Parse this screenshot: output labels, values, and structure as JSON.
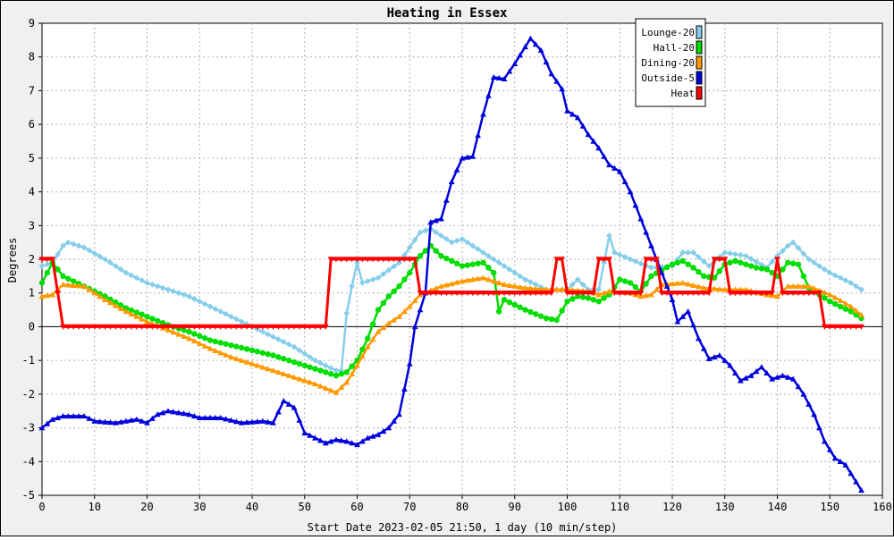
{
  "chart_data": {
    "type": "line",
    "title": "Heating in Essex",
    "xlabel": "Start Date 2023-02-05 21:50, 1 day (10 min/step)",
    "ylabel": "Degrees",
    "xlim": [
      0,
      160
    ],
    "ylim": [
      -5,
      9
    ],
    "x_ticks": [
      0,
      10,
      20,
      30,
      40,
      50,
      60,
      70,
      80,
      90,
      100,
      110,
      120,
      130,
      140,
      150,
      160
    ],
    "y_ticks": [
      -5,
      -4,
      -3,
      -2,
      -1,
      0,
      1,
      2,
      3,
      4,
      5,
      6,
      7,
      8,
      9
    ],
    "grid": true,
    "zero_line": true,
    "legend_position": "top-right",
    "series": [
      {
        "name": "Lounge-20",
        "color": "#87ceeb",
        "marker": "diamond",
        "points": [
          [
            0,
            1.8
          ],
          [
            2,
            1.9
          ],
          [
            4,
            2.4
          ],
          [
            5,
            2.5
          ],
          [
            8,
            2.35
          ],
          [
            12,
            2.0
          ],
          [
            16,
            1.6
          ],
          [
            20,
            1.3
          ],
          [
            24,
            1.1
          ],
          [
            28,
            0.9
          ],
          [
            32,
            0.6
          ],
          [
            36,
            0.3
          ],
          [
            40,
            0.0
          ],
          [
            44,
            -0.3
          ],
          [
            48,
            -0.6
          ],
          [
            52,
            -1.0
          ],
          [
            56,
            -1.3
          ],
          [
            57,
            -1.3
          ],
          [
            58,
            0.4
          ],
          [
            59,
            1.2
          ],
          [
            60,
            1.9
          ],
          [
            61,
            1.3
          ],
          [
            64,
            1.45
          ],
          [
            68,
            1.9
          ],
          [
            72,
            2.8
          ],
          [
            74,
            2.9
          ],
          [
            78,
            2.5
          ],
          [
            80,
            2.6
          ],
          [
            84,
            2.2
          ],
          [
            88,
            1.8
          ],
          [
            92,
            1.4
          ],
          [
            96,
            1.1
          ],
          [
            100,
            1.1
          ],
          [
            102,
            1.4
          ],
          [
            104,
            1.1
          ],
          [
            106,
            1.1
          ],
          [
            108,
            2.7
          ],
          [
            109,
            2.2
          ],
          [
            112,
            2.0
          ],
          [
            116,
            1.75
          ],
          [
            120,
            1.8
          ],
          [
            122,
            2.2
          ],
          [
            124,
            2.2
          ],
          [
            127,
            1.8
          ],
          [
            130,
            2.2
          ],
          [
            134,
            2.1
          ],
          [
            138,
            1.75
          ],
          [
            140,
            2.1
          ],
          [
            142,
            2.4
          ],
          [
            143,
            2.5
          ],
          [
            146,
            2.0
          ],
          [
            150,
            1.6
          ],
          [
            154,
            1.3
          ],
          [
            156,
            1.1
          ]
        ]
      },
      {
        "name": "Hall-20",
        "color": "#00dd00",
        "marker": "circle",
        "points": [
          [
            0,
            1.3
          ],
          [
            2,
            1.9
          ],
          [
            4,
            1.5
          ],
          [
            8,
            1.2
          ],
          [
            12,
            0.9
          ],
          [
            16,
            0.55
          ],
          [
            20,
            0.3
          ],
          [
            24,
            0.05
          ],
          [
            28,
            -0.15
          ],
          [
            32,
            -0.4
          ],
          [
            36,
            -0.55
          ],
          [
            40,
            -0.7
          ],
          [
            44,
            -0.85
          ],
          [
            48,
            -1.05
          ],
          [
            52,
            -1.25
          ],
          [
            56,
            -1.45
          ],
          [
            58,
            -1.35
          ],
          [
            60,
            -1.0
          ],
          [
            62,
            -0.35
          ],
          [
            64,
            0.5
          ],
          [
            66,
            0.9
          ],
          [
            68,
            1.2
          ],
          [
            70,
            1.6
          ],
          [
            72,
            2.1
          ],
          [
            74,
            2.4
          ],
          [
            76,
            2.1
          ],
          [
            80,
            1.8
          ],
          [
            84,
            1.9
          ],
          [
            86,
            1.6
          ],
          [
            87,
            0.45
          ],
          [
            88,
            0.8
          ],
          [
            92,
            0.5
          ],
          [
            96,
            0.25
          ],
          [
            98,
            0.2
          ],
          [
            100,
            0.75
          ],
          [
            102,
            0.9
          ],
          [
            104,
            0.85
          ],
          [
            106,
            0.75
          ],
          [
            108,
            0.95
          ],
          [
            110,
            1.4
          ],
          [
            112,
            1.3
          ],
          [
            114,
            1.05
          ],
          [
            116,
            1.5
          ],
          [
            120,
            1.85
          ],
          [
            122,
            1.95
          ],
          [
            124,
            1.75
          ],
          [
            126,
            1.5
          ],
          [
            128,
            1.45
          ],
          [
            130,
            1.85
          ],
          [
            132,
            1.95
          ],
          [
            134,
            1.85
          ],
          [
            136,
            1.75
          ],
          [
            138,
            1.7
          ],
          [
            140,
            1.5
          ],
          [
            142,
            1.9
          ],
          [
            144,
            1.85
          ],
          [
            146,
            1.15
          ],
          [
            150,
            0.75
          ],
          [
            154,
            0.45
          ],
          [
            156,
            0.25
          ]
        ]
      },
      {
        "name": "Dining-20",
        "color": "#ff9900",
        "marker": "triangle",
        "points": [
          [
            0,
            0.9
          ],
          [
            2,
            0.95
          ],
          [
            4,
            1.25
          ],
          [
            8,
            1.2
          ],
          [
            12,
            0.8
          ],
          [
            16,
            0.45
          ],
          [
            20,
            0.15
          ],
          [
            24,
            -0.1
          ],
          [
            28,
            -0.35
          ],
          [
            32,
            -0.65
          ],
          [
            36,
            -0.9
          ],
          [
            40,
            -1.1
          ],
          [
            44,
            -1.3
          ],
          [
            48,
            -1.5
          ],
          [
            52,
            -1.7
          ],
          [
            56,
            -1.95
          ],
          [
            58,
            -1.65
          ],
          [
            60,
            -1.15
          ],
          [
            62,
            -0.6
          ],
          [
            64,
            -0.15
          ],
          [
            66,
            0.1
          ],
          [
            68,
            0.3
          ],
          [
            70,
            0.6
          ],
          [
            72,
            0.95
          ],
          [
            76,
            1.2
          ],
          [
            80,
            1.35
          ],
          [
            84,
            1.45
          ],
          [
            88,
            1.25
          ],
          [
            92,
            1.15
          ],
          [
            96,
            1.1
          ],
          [
            100,
            1.1
          ],
          [
            104,
            1.05
          ],
          [
            106,
            0.95
          ],
          [
            108,
            1.05
          ],
          [
            112,
            1.0
          ],
          [
            114,
            0.9
          ],
          [
            116,
            0.95
          ],
          [
            118,
            1.25
          ],
          [
            122,
            1.3
          ],
          [
            126,
            1.15
          ],
          [
            130,
            1.1
          ],
          [
            134,
            1.1
          ],
          [
            138,
            0.95
          ],
          [
            140,
            0.9
          ],
          [
            142,
            1.2
          ],
          [
            146,
            1.2
          ],
          [
            150,
            0.95
          ],
          [
            154,
            0.6
          ],
          [
            156,
            0.35
          ]
        ]
      },
      {
        "name": "Outside-5",
        "color": "#0000dd",
        "marker": "triangle",
        "points": [
          [
            0,
            -3.0
          ],
          [
            2,
            -2.75
          ],
          [
            4,
            -2.65
          ],
          [
            8,
            -2.65
          ],
          [
            10,
            -2.8
          ],
          [
            14,
            -2.85
          ],
          [
            18,
            -2.75
          ],
          [
            20,
            -2.85
          ],
          [
            22,
            -2.6
          ],
          [
            24,
            -2.5
          ],
          [
            28,
            -2.6
          ],
          [
            30,
            -2.7
          ],
          [
            34,
            -2.7
          ],
          [
            38,
            -2.85
          ],
          [
            42,
            -2.8
          ],
          [
            44,
            -2.85
          ],
          [
            46,
            -2.2
          ],
          [
            48,
            -2.4
          ],
          [
            50,
            -3.15
          ],
          [
            52,
            -3.3
          ],
          [
            54,
            -3.45
          ],
          [
            56,
            -3.35
          ],
          [
            58,
            -3.4
          ],
          [
            60,
            -3.5
          ],
          [
            62,
            -3.3
          ],
          [
            64,
            -3.2
          ],
          [
            66,
            -3.0
          ],
          [
            68,
            -2.6
          ],
          [
            70,
            -1.1
          ],
          [
            71,
            0.0
          ],
          [
            73,
            1.0
          ],
          [
            74,
            3.1
          ],
          [
            76,
            3.2
          ],
          [
            78,
            4.3
          ],
          [
            80,
            5.0
          ],
          [
            82,
            5.05
          ],
          [
            84,
            6.3
          ],
          [
            86,
            7.4
          ],
          [
            88,
            7.35
          ],
          [
            90,
            7.8
          ],
          [
            92,
            8.3
          ],
          [
            93,
            8.55
          ],
          [
            95,
            8.2
          ],
          [
            97,
            7.5
          ],
          [
            99,
            7.05
          ],
          [
            100,
            6.4
          ],
          [
            102,
            6.2
          ],
          [
            104,
            5.7
          ],
          [
            106,
            5.3
          ],
          [
            108,
            4.8
          ],
          [
            110,
            4.6
          ],
          [
            112,
            4.0
          ],
          [
            114,
            3.2
          ],
          [
            116,
            2.4
          ],
          [
            118,
            1.6
          ],
          [
            120,
            0.8
          ],
          [
            121,
            0.15
          ],
          [
            123,
            0.45
          ],
          [
            125,
            -0.35
          ],
          [
            127,
            -0.95
          ],
          [
            129,
            -0.85
          ],
          [
            131,
            -1.15
          ],
          [
            133,
            -1.6
          ],
          [
            135,
            -1.45
          ],
          [
            137,
            -1.2
          ],
          [
            139,
            -1.55
          ],
          [
            141,
            -1.45
          ],
          [
            143,
            -1.55
          ],
          [
            145,
            -2.0
          ],
          [
            147,
            -2.6
          ],
          [
            149,
            -3.4
          ],
          [
            151,
            -3.9
          ],
          [
            153,
            -4.1
          ],
          [
            155,
            -4.6
          ],
          [
            156,
            -4.85
          ]
        ]
      },
      {
        "name": "Heat",
        "color": "#ff0000",
        "marker": "triangle-down",
        "points": [
          [
            0,
            2
          ],
          [
            2,
            2
          ],
          [
            4,
            0
          ],
          [
            54,
            0
          ],
          [
            55,
            2
          ],
          [
            71,
            2
          ],
          [
            72,
            1
          ],
          [
            97,
            1
          ],
          [
            98,
            2
          ],
          [
            99,
            2
          ],
          [
            100,
            1
          ],
          [
            105,
            1
          ],
          [
            106,
            2
          ],
          [
            108,
            2
          ],
          [
            109,
            1
          ],
          [
            114,
            1
          ],
          [
            115,
            2
          ],
          [
            117,
            2
          ],
          [
            118,
            1
          ],
          [
            127,
            1
          ],
          [
            128,
            2
          ],
          [
            130,
            2
          ],
          [
            131,
            1
          ],
          [
            139,
            1
          ],
          [
            140,
            2
          ],
          [
            141,
            1
          ],
          [
            148,
            1
          ],
          [
            149,
            0
          ],
          [
            156,
            0
          ]
        ]
      }
    ]
  }
}
